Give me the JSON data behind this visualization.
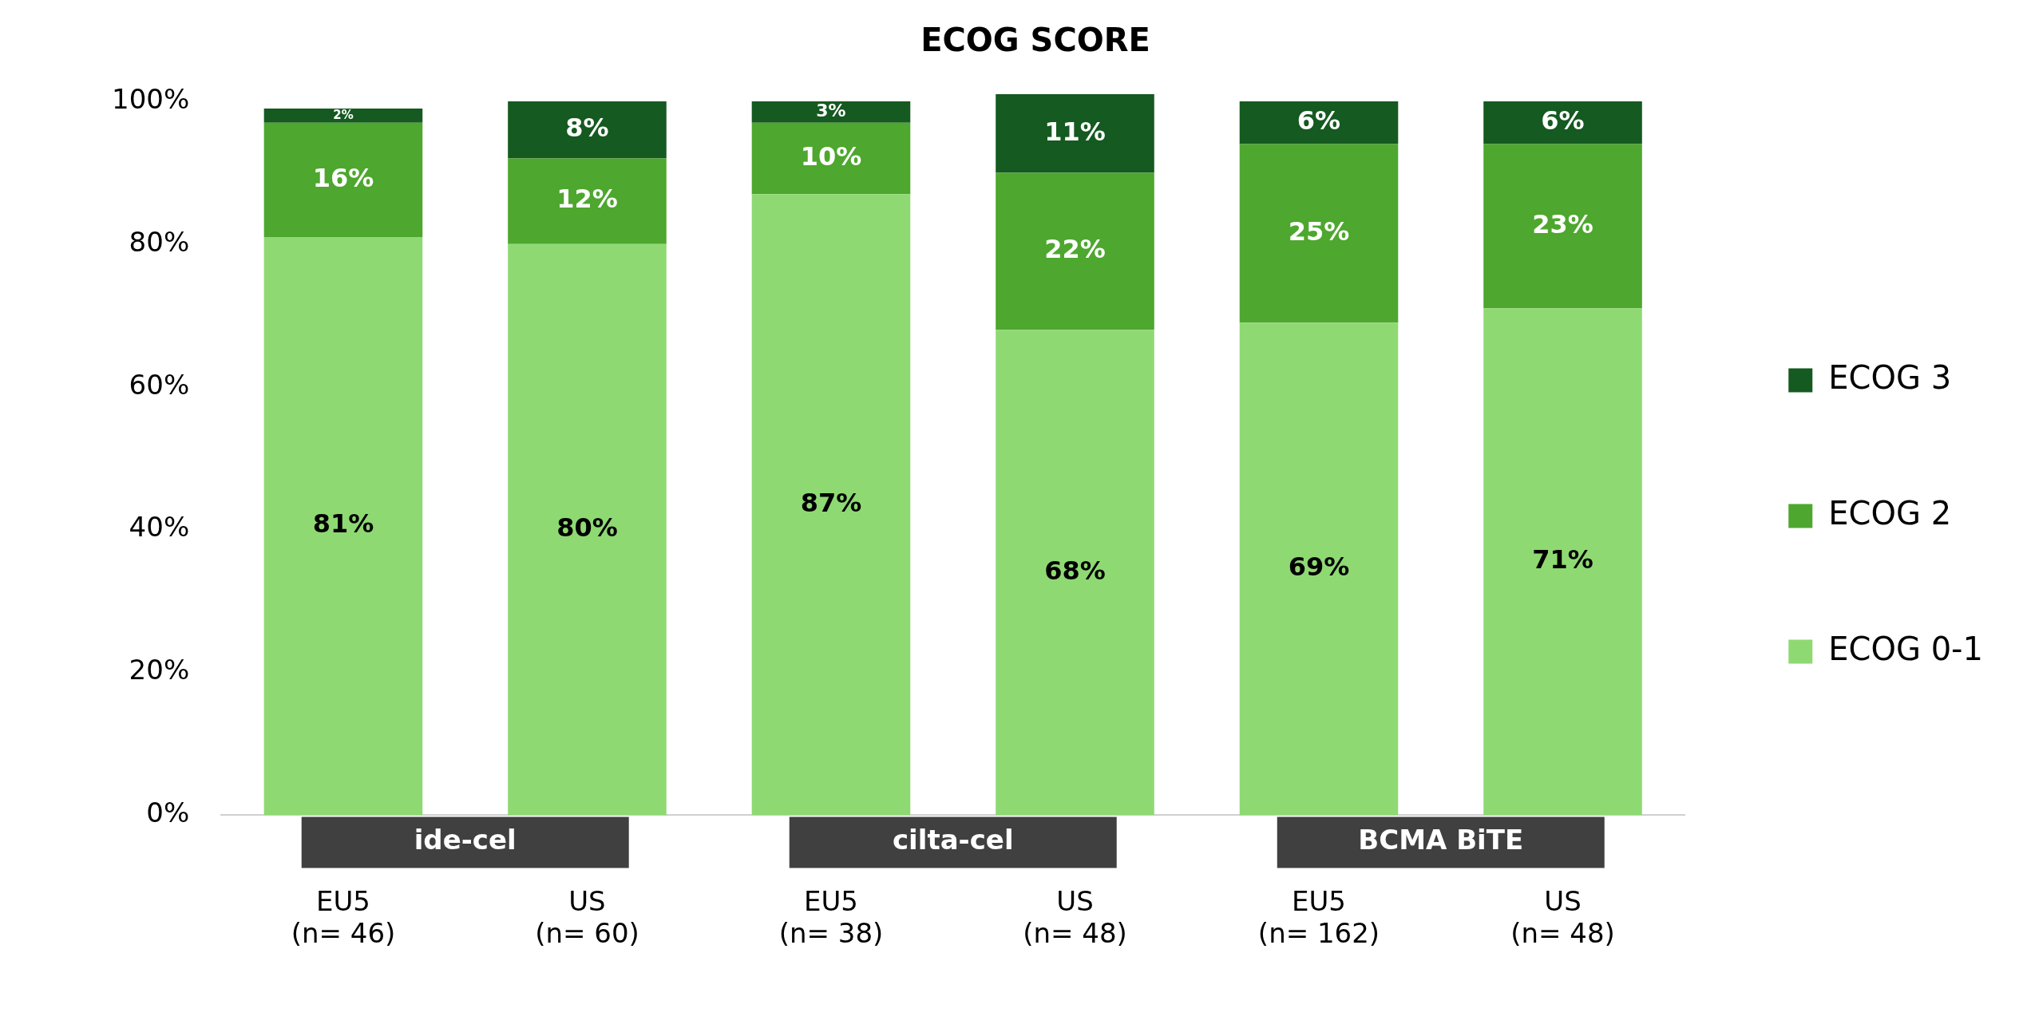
{
  "chart_data": {
    "type": "bar",
    "title": "ECOG SCORE",
    "stacked": true,
    "grid": false,
    "legend": "right",
    "categories": [
      "EU5\n(n= 46)",
      "US\n(n= 60)",
      "EU5\n(n= 38)",
      "US\n(n= 48)",
      "EU5\n(n= 162)",
      "US\n(n= 48)"
    ],
    "series": [
      {
        "name": "ECOG 0-1",
        "color": "#8fd973",
        "values": [
          81,
          80,
          87,
          68,
          69,
          71
        ],
        "value_labels": [
          "81%",
          "80%",
          "87%",
          "68%",
          "69%",
          "71%"
        ]
      },
      {
        "name": "ECOG 2",
        "color": "#4ea72e",
        "values": [
          16,
          12,
          10,
          22,
          25,
          23
        ],
        "value_labels": [
          "16%",
          "12%",
          "10%",
          "22%",
          "25%",
          "23%"
        ]
      },
      {
        "name": "ECOG 3",
        "color": "#155a20",
        "values": [
          2,
          8,
          3,
          11,
          6,
          6
        ],
        "value_labels": [
          "2%",
          "8%",
          "3%",
          "11%",
          "6%",
          "6%"
        ]
      }
    ],
    "ylim": [
      0,
      101
    ],
    "yticks": [
      {
        "value": 0,
        "label": "0%"
      },
      {
        "value": 20,
        "label": "20%"
      },
      {
        "value": 40,
        "label": "40%"
      },
      {
        "value": 60,
        "label": "60%"
      },
      {
        "value": 80,
        "label": "80%"
      },
      {
        "value": 100,
        "label": "100%"
      }
    ],
    "annotations": [
      "ide-cel",
      "cilta-cel",
      "BCMA BiTE"
    ]
  }
}
